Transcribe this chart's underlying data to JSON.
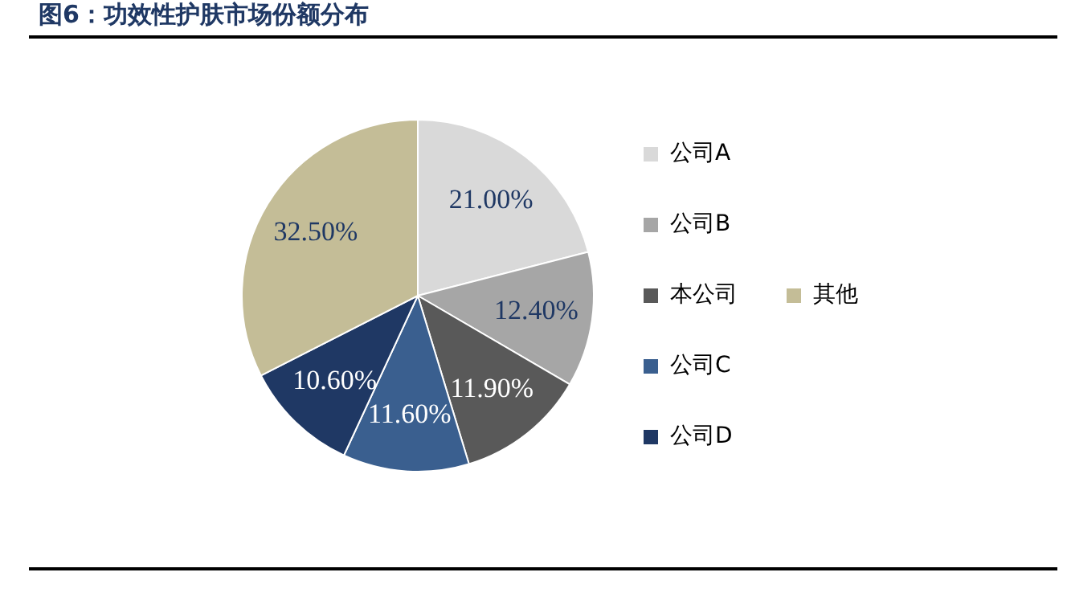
{
  "chart_data": {
    "type": "pie",
    "title": "图6：功效性护肤市场份额分布",
    "categories": [
      "公司A",
      "公司B",
      "本公司",
      "公司C",
      "公司D",
      "其他"
    ],
    "values": [
      21.0,
      12.4,
      11.9,
      11.6,
      10.6,
      32.5
    ],
    "value_labels": [
      "21.00%",
      "12.40%",
      "11.90%",
      "11.60%",
      "10.60%",
      "32.50%"
    ],
    "colors": [
      "#d9d9d9",
      "#a6a6a6",
      "#595959",
      "#3a5f8f",
      "#1f3864",
      "#c4bd97"
    ],
    "legend": "right"
  }
}
